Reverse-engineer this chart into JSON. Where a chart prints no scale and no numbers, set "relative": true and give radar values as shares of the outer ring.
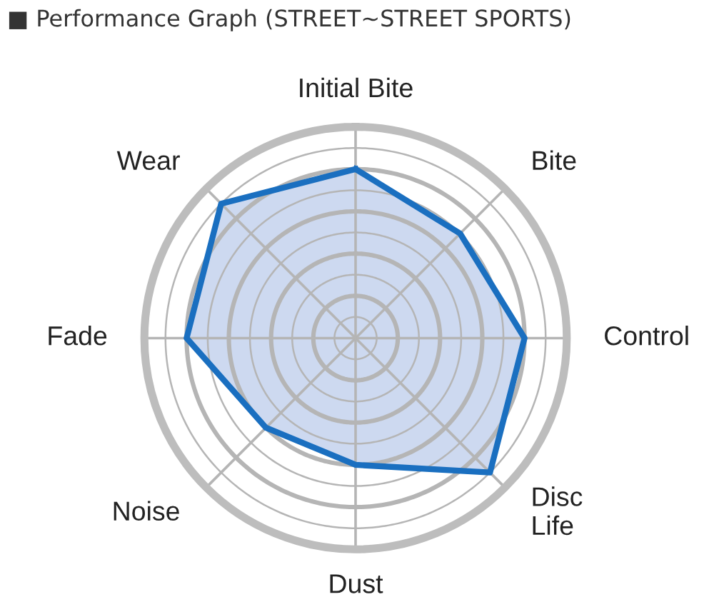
{
  "chart_data": {
    "type": "radar",
    "title": "■ Performance Graph (STREET∼STREET SPORTS)",
    "relative": true,
    "grid": true,
    "categories": [
      "Initial Bite",
      "Bite",
      "Control",
      "Disc\nLife",
      "Dust",
      "Noise",
      "Fade",
      "Wear"
    ],
    "series": [
      {
        "color": "#1a6fc0",
        "values": [
          0.8,
          0.7,
          0.8,
          0.9,
          0.6,
          0.6,
          0.8,
          0.9
        ]
      }
    ]
  }
}
